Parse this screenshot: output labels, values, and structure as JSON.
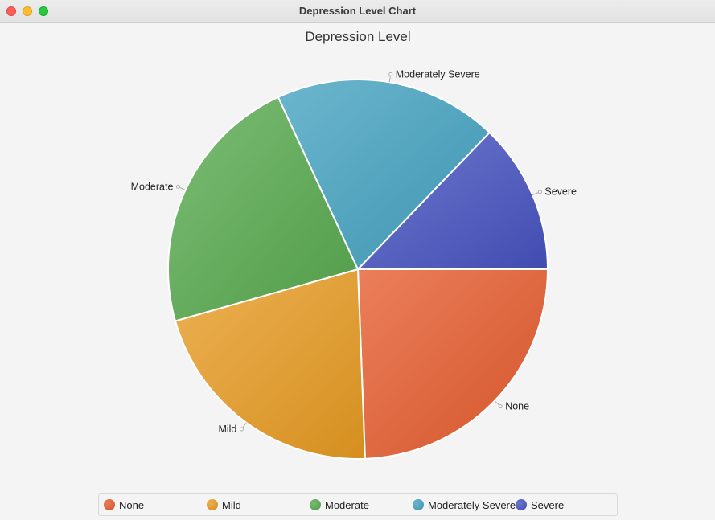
{
  "window": {
    "title": "Depression Level Chart"
  },
  "chart_data": {
    "type": "pie",
    "title": "Depression Level",
    "categories": [
      "None",
      "Mild",
      "Moderate",
      "Moderately Severe",
      "Severe"
    ],
    "values": [
      24.4,
      21.2,
      22.5,
      19.1,
      12.8
    ],
    "colors": [
      "#e55b2d",
      "#e89b22",
      "#57aa4e",
      "#43a2c0",
      "#4753c0"
    ],
    "start_angle_deg": 0,
    "direction": "clockwise",
    "legend_position": "bottom"
  }
}
